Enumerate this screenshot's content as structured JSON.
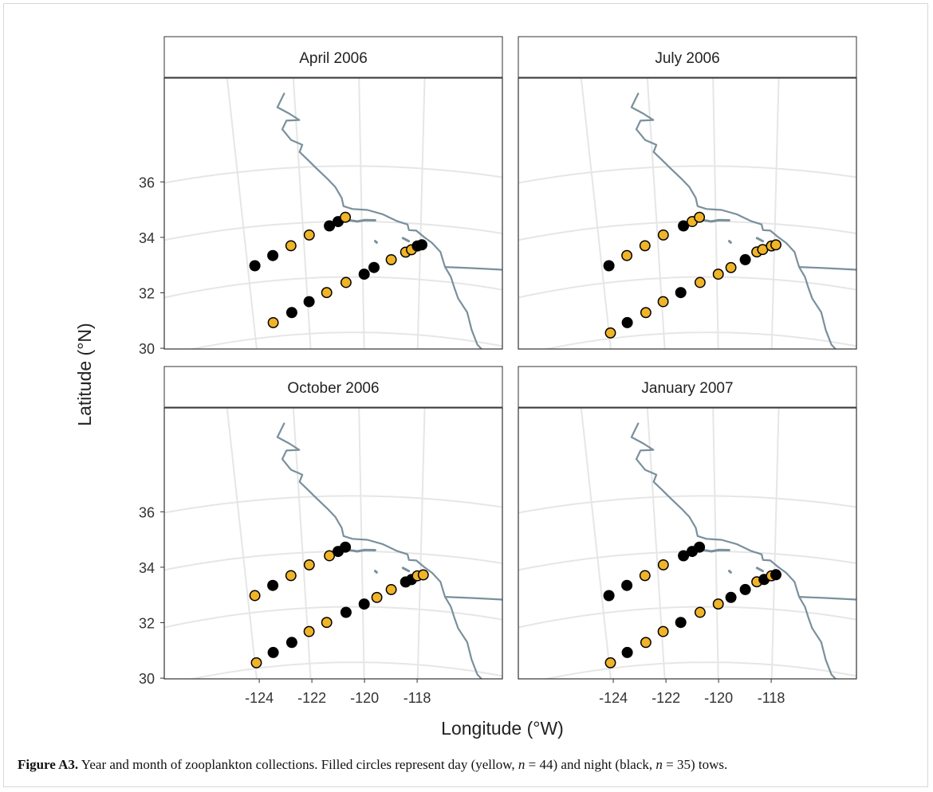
{
  "chart_data": {
    "type": "scatter",
    "xlabel": "Longitude (°W)",
    "ylabel": "Latitude (°N)",
    "x_ticks": [
      -124,
      -122,
      -120,
      -118
    ],
    "y_ticks": [
      30,
      32,
      34,
      36
    ],
    "xlim": [
      -126.2,
      -113.9
    ],
    "ylim": [
      28.8,
      38.6
    ],
    "grid": true,
    "colors": {
      "day": "#f0b429",
      "night": "#000000",
      "coast": "#7a909c",
      "grid": "#e6e6e6"
    },
    "panels": [
      {
        "title": "April 2006",
        "points": [
          {
            "lon": -123.75,
            "lat": 32.6,
            "period": "night"
          },
          {
            "lon": -123.1,
            "lat": 32.9,
            "period": "night"
          },
          {
            "lon": -122.45,
            "lat": 33.2,
            "period": "day"
          },
          {
            "lon": -121.8,
            "lat": 33.55,
            "period": "day"
          },
          {
            "lon": -121.1,
            "lat": 33.85,
            "period": "night"
          },
          {
            "lon": -120.8,
            "lat": 34.0,
            "period": "night"
          },
          {
            "lon": -120.55,
            "lat": 34.15,
            "period": "day"
          },
          {
            "lon": -123.3,
            "lat": 30.5,
            "period": "day"
          },
          {
            "lon": -122.6,
            "lat": 30.8,
            "period": "night"
          },
          {
            "lon": -121.95,
            "lat": 31.15,
            "period": "night"
          },
          {
            "lon": -121.3,
            "lat": 31.45,
            "period": "day"
          },
          {
            "lon": -120.6,
            "lat": 31.8,
            "period": "day"
          },
          {
            "lon": -119.95,
            "lat": 32.1,
            "period": "night"
          },
          {
            "lon": -119.6,
            "lat": 32.35,
            "period": "night"
          },
          {
            "lon": -119.0,
            "lat": 32.65,
            "period": "day"
          },
          {
            "lon": -118.5,
            "lat": 32.95,
            "period": "day"
          },
          {
            "lon": -118.3,
            "lat": 33.05,
            "period": "day"
          },
          {
            "lon": -118.1,
            "lat": 33.2,
            "period": "night"
          },
          {
            "lon": -117.95,
            "lat": 33.25,
            "period": "night"
          }
        ]
      },
      {
        "title": "July 2006",
        "points": [
          {
            "lon": -123.75,
            "lat": 32.6,
            "period": "night"
          },
          {
            "lon": -123.1,
            "lat": 32.9,
            "period": "day"
          },
          {
            "lon": -122.45,
            "lat": 33.2,
            "period": "day"
          },
          {
            "lon": -121.8,
            "lat": 33.55,
            "period": "day"
          },
          {
            "lon": -121.1,
            "lat": 33.85,
            "period": "night"
          },
          {
            "lon": -120.8,
            "lat": 34.0,
            "period": "day"
          },
          {
            "lon": -120.55,
            "lat": 34.15,
            "period": "day"
          },
          {
            "lon": -123.95,
            "lat": 30.2,
            "period": "day"
          },
          {
            "lon": -123.3,
            "lat": 30.5,
            "period": "night"
          },
          {
            "lon": -122.6,
            "lat": 30.8,
            "period": "day"
          },
          {
            "lon": -121.95,
            "lat": 31.15,
            "period": "day"
          },
          {
            "lon": -121.3,
            "lat": 31.45,
            "period": "night"
          },
          {
            "lon": -120.6,
            "lat": 31.8,
            "period": "day"
          },
          {
            "lon": -119.95,
            "lat": 32.1,
            "period": "day"
          },
          {
            "lon": -119.5,
            "lat": 32.35,
            "period": "day"
          },
          {
            "lon": -119.0,
            "lat": 32.65,
            "period": "night"
          },
          {
            "lon": -118.6,
            "lat": 32.95,
            "period": "day"
          },
          {
            "lon": -118.4,
            "lat": 33.05,
            "period": "day"
          },
          {
            "lon": -118.1,
            "lat": 33.2,
            "period": "day"
          },
          {
            "lon": -117.95,
            "lat": 33.25,
            "period": "day"
          }
        ]
      },
      {
        "title": "October 2006",
        "points": [
          {
            "lon": -123.75,
            "lat": 32.6,
            "period": "day"
          },
          {
            "lon": -123.1,
            "lat": 32.9,
            "period": "night"
          },
          {
            "lon": -122.45,
            "lat": 33.2,
            "period": "day"
          },
          {
            "lon": -121.8,
            "lat": 33.55,
            "period": "day"
          },
          {
            "lon": -121.1,
            "lat": 33.85,
            "period": "day"
          },
          {
            "lon": -120.8,
            "lat": 34.0,
            "period": "night"
          },
          {
            "lon": -120.55,
            "lat": 34.15,
            "period": "night"
          },
          {
            "lon": -123.95,
            "lat": 30.2,
            "period": "day"
          },
          {
            "lon": -123.3,
            "lat": 30.5,
            "period": "night"
          },
          {
            "lon": -122.6,
            "lat": 30.8,
            "period": "night"
          },
          {
            "lon": -121.95,
            "lat": 31.15,
            "period": "day"
          },
          {
            "lon": -121.3,
            "lat": 31.45,
            "period": "day"
          },
          {
            "lon": -120.6,
            "lat": 31.8,
            "period": "night"
          },
          {
            "lon": -119.95,
            "lat": 32.1,
            "period": "night"
          },
          {
            "lon": -119.5,
            "lat": 32.35,
            "period": "day"
          },
          {
            "lon": -119.0,
            "lat": 32.65,
            "period": "day"
          },
          {
            "lon": -118.5,
            "lat": 32.95,
            "period": "night"
          },
          {
            "lon": -118.3,
            "lat": 33.05,
            "period": "night"
          },
          {
            "lon": -118.1,
            "lat": 33.2,
            "period": "day"
          },
          {
            "lon": -117.9,
            "lat": 33.25,
            "period": "day"
          }
        ]
      },
      {
        "title": "January 2007",
        "points": [
          {
            "lon": -123.75,
            "lat": 32.6,
            "period": "night"
          },
          {
            "lon": -123.1,
            "lat": 32.9,
            "period": "night"
          },
          {
            "lon": -122.45,
            "lat": 33.2,
            "period": "day"
          },
          {
            "lon": -121.8,
            "lat": 33.55,
            "period": "day"
          },
          {
            "lon": -121.1,
            "lat": 33.85,
            "period": "night"
          },
          {
            "lon": -120.8,
            "lat": 34.0,
            "period": "night"
          },
          {
            "lon": -120.55,
            "lat": 34.15,
            "period": "night"
          },
          {
            "lon": -123.95,
            "lat": 30.2,
            "period": "day"
          },
          {
            "lon": -123.3,
            "lat": 30.5,
            "period": "night"
          },
          {
            "lon": -122.6,
            "lat": 30.8,
            "period": "day"
          },
          {
            "lon": -121.95,
            "lat": 31.15,
            "period": "day"
          },
          {
            "lon": -121.3,
            "lat": 31.45,
            "period": "night"
          },
          {
            "lon": -120.6,
            "lat": 31.8,
            "period": "day"
          },
          {
            "lon": -119.95,
            "lat": 32.1,
            "period": "day"
          },
          {
            "lon": -119.5,
            "lat": 32.35,
            "period": "night"
          },
          {
            "lon": -119.0,
            "lat": 32.65,
            "period": "night"
          },
          {
            "lon": -118.6,
            "lat": 32.95,
            "period": "day"
          },
          {
            "lon": -118.35,
            "lat": 33.05,
            "period": "night"
          },
          {
            "lon": -118.1,
            "lat": 33.2,
            "period": "day"
          },
          {
            "lon": -117.95,
            "lat": 33.25,
            "period": "night"
          }
        ]
      }
    ]
  },
  "caption": {
    "label": "Figure A3.",
    "text_1": " Year and month of zooplankton collections. Filled circles represent day (yellow, ",
    "n_day_var": "n",
    "n_day_val": " = 44",
    "text_2": ") and night (black, ",
    "n_night_var": "n",
    "n_night_val": " = 35",
    "text_3": ") tows."
  }
}
